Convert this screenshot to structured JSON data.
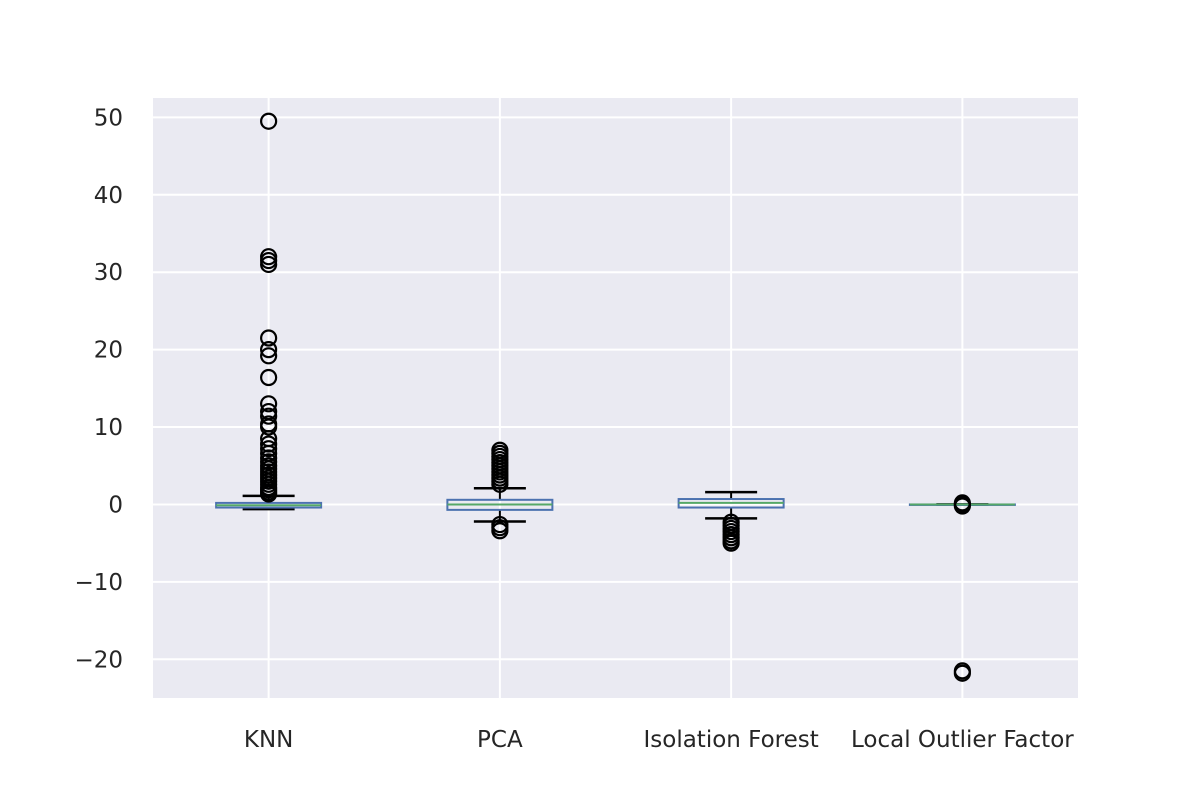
{
  "chart_data": {
    "type": "box",
    "title": "",
    "xlabel": "",
    "ylabel": "",
    "categories": [
      "KNN",
      "PCA",
      "Isolation Forest",
      "Local Outlier Factor"
    ],
    "ylim": [
      -25,
      52.5
    ],
    "yticks": [
      -20,
      -10,
      0,
      10,
      20,
      30,
      40,
      50
    ],
    "ytick_labels": [
      "−20",
      "−10",
      "0",
      "10",
      "20",
      "30",
      "40",
      "50"
    ],
    "grid": true,
    "colors": {
      "background": "#eaeaf2",
      "grid": "#ffffff",
      "box": "#4c72b0",
      "median": "#55a868",
      "whisker": "#000000",
      "flier": "#000000"
    },
    "boxes": [
      {
        "name": "KNN",
        "whisker_low": -0.6,
        "q1": -0.4,
        "median": -0.1,
        "q3": 0.2,
        "whisker_high": 1.1,
        "outliers": [
          49.5,
          32.0,
          31.5,
          31.0,
          21.5,
          20.0,
          19.2,
          16.4,
          13.0,
          12.0,
          11.4,
          10.4,
          10.0,
          8.5,
          7.8,
          7.2,
          6.6,
          6.0,
          5.5,
          5.0,
          4.6,
          4.2,
          3.8,
          3.4,
          3.0,
          2.6,
          2.2,
          1.9,
          1.6,
          1.35
        ]
      },
      {
        "name": "PCA",
        "whisker_low": -2.2,
        "q1": -0.7,
        "median": 0.0,
        "q3": 0.6,
        "whisker_high": 2.1,
        "outliers": [
          7.0,
          6.6,
          6.2,
          5.8,
          5.4,
          5.0,
          4.6,
          4.2,
          3.8,
          3.4,
          3.0,
          2.6,
          -2.6,
          -3.0,
          -3.4
        ]
      },
      {
        "name": "Isolation Forest",
        "whisker_low": -1.8,
        "q1": -0.4,
        "median": 0.2,
        "q3": 0.7,
        "whisker_high": 1.6,
        "outliers": [
          -2.3,
          -2.7,
          -3.1,
          -3.5,
          -3.9,
          -4.3,
          -4.7,
          -5.0
        ]
      },
      {
        "name": "Local Outlier Factor",
        "whisker_low": 0.0,
        "q1": 0.0,
        "median": 0.0,
        "q3": 0.0,
        "whisker_high": 0.0,
        "outliers": [
          0.2,
          0.0,
          -0.2,
          -21.5,
          -21.8
        ]
      }
    ]
  }
}
